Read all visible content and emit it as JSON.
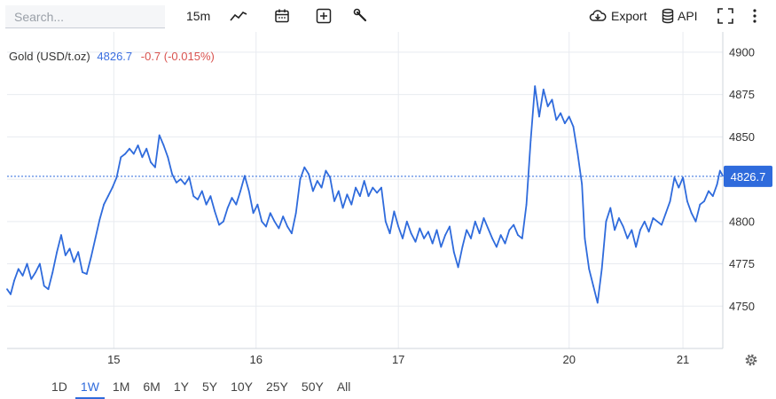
{
  "toolbar": {
    "search_placeholder": "Search...",
    "interval": "15m",
    "export_label": "Export",
    "api_label": "API"
  },
  "legend": {
    "name": "Gold (USD/t.oz)",
    "price": "4826.7",
    "change": "-0.7 (-0.015%)"
  },
  "periods": [
    "1D",
    "1W",
    "1M",
    "6M",
    "1Y",
    "5Y",
    "10Y",
    "25Y",
    "50Y",
    "All"
  ],
  "active_period": "1W",
  "colors": {
    "line": "#2f6bdc",
    "last_price_box": "#2f6bdc",
    "change": "#d9534f",
    "grid": "#e8ebf0"
  },
  "chart_data": {
    "type": "line",
    "series_name": "Gold (USD/t.oz)",
    "x_ticks": [
      {
        "label": "15",
        "x": 7.5
      },
      {
        "label": "16",
        "x": 17.5
      },
      {
        "label": "17",
        "x": 27.5
      },
      {
        "label": "20",
        "x": 39.5
      },
      {
        "label": "21",
        "x": 47.5
      }
    ],
    "x_range": [
      0,
      50.3
    ],
    "y_ticks": [
      4750,
      4775,
      4800,
      4825,
      4850,
      4875,
      4900
    ],
    "ylim": [
      4725,
      4912
    ],
    "last_price": 4826.7,
    "last_price_label": "4826.7",
    "grid": true,
    "points": [
      [
        0.0,
        4760
      ],
      [
        0.25,
        4757
      ],
      [
        0.5,
        4765
      ],
      [
        0.8,
        4772
      ],
      [
        1.1,
        4768
      ],
      [
        1.4,
        4775
      ],
      [
        1.7,
        4766
      ],
      [
        2.0,
        4770
      ],
      [
        2.3,
        4775
      ],
      [
        2.6,
        4762
      ],
      [
        2.9,
        4760
      ],
      [
        3.2,
        4770
      ],
      [
        3.5,
        4782
      ],
      [
        3.8,
        4792
      ],
      [
        4.1,
        4780
      ],
      [
        4.4,
        4784
      ],
      [
        4.7,
        4776
      ],
      [
        5.0,
        4782
      ],
      [
        5.3,
        4770
      ],
      [
        5.6,
        4769
      ],
      [
        5.9,
        4779
      ],
      [
        6.2,
        4790
      ],
      [
        6.5,
        4801
      ],
      [
        6.8,
        4810
      ],
      [
        7.1,
        4815
      ],
      [
        7.4,
        4820
      ],
      [
        7.7,
        4826
      ],
      [
        8.0,
        4838
      ],
      [
        8.3,
        4840
      ],
      [
        8.6,
        4843
      ],
      [
        8.9,
        4840
      ],
      [
        9.2,
        4845
      ],
      [
        9.5,
        4838
      ],
      [
        9.8,
        4843
      ],
      [
        10.1,
        4835
      ],
      [
        10.4,
        4832
      ],
      [
        10.7,
        4851
      ],
      [
        11.0,
        4845
      ],
      [
        11.3,
        4838
      ],
      [
        11.6,
        4828
      ],
      [
        11.9,
        4823
      ],
      [
        12.2,
        4825
      ],
      [
        12.5,
        4822
      ],
      [
        12.8,
        4826
      ],
      [
        13.1,
        4815
      ],
      [
        13.4,
        4813
      ],
      [
        13.7,
        4818
      ],
      [
        14.0,
        4810
      ],
      [
        14.3,
        4815
      ],
      [
        14.6,
        4806
      ],
      [
        14.9,
        4798
      ],
      [
        15.2,
        4800
      ],
      [
        15.5,
        4808
      ],
      [
        15.8,
        4814
      ],
      [
        16.1,
        4810
      ],
      [
        16.4,
        4818
      ],
      [
        16.7,
        4827
      ],
      [
        17.0,
        4818
      ],
      [
        17.3,
        4805
      ],
      [
        17.6,
        4810
      ],
      [
        17.9,
        4800
      ],
      [
        18.2,
        4797
      ],
      [
        18.5,
        4805
      ],
      [
        18.8,
        4800
      ],
      [
        19.1,
        4796
      ],
      [
        19.4,
        4803
      ],
      [
        19.7,
        4797
      ],
      [
        20.0,
        4793
      ],
      [
        20.3,
        4805
      ],
      [
        20.6,
        4825
      ],
      [
        20.9,
        4832
      ],
      [
        21.2,
        4828
      ],
      [
        21.5,
        4818
      ],
      [
        21.8,
        4824
      ],
      [
        22.1,
        4820
      ],
      [
        22.4,
        4830
      ],
      [
        22.7,
        4826
      ],
      [
        23.0,
        4812
      ],
      [
        23.3,
        4818
      ],
      [
        23.6,
        4808
      ],
      [
        23.9,
        4816
      ],
      [
        24.2,
        4810
      ],
      [
        24.5,
        4820
      ],
      [
        24.8,
        4815
      ],
      [
        25.1,
        4824
      ],
      [
        25.4,
        4815
      ],
      [
        25.7,
        4820
      ],
      [
        26.0,
        4817
      ],
      [
        26.3,
        4820
      ],
      [
        26.6,
        4800
      ],
      [
        26.9,
        4793
      ],
      [
        27.2,
        4806
      ],
      [
        27.5,
        4797
      ],
      [
        27.8,
        4790
      ],
      [
        28.1,
        4800
      ],
      [
        28.4,
        4793
      ],
      [
        28.7,
        4788
      ],
      [
        29.0,
        4796
      ],
      [
        29.3,
        4790
      ],
      [
        29.6,
        4794
      ],
      [
        29.9,
        4787
      ],
      [
        30.2,
        4795
      ],
      [
        30.5,
        4785
      ],
      [
        30.8,
        4792
      ],
      [
        31.1,
        4797
      ],
      [
        31.4,
        4782
      ],
      [
        31.7,
        4773
      ],
      [
        32.0,
        4785
      ],
      [
        32.3,
        4795
      ],
      [
        32.6,
        4790
      ],
      [
        32.9,
        4800
      ],
      [
        33.2,
        4793
      ],
      [
        33.5,
        4802
      ],
      [
        33.8,
        4796
      ],
      [
        34.1,
        4790
      ],
      [
        34.4,
        4785
      ],
      [
        34.7,
        4792
      ],
      [
        35.0,
        4787
      ],
      [
        35.3,
        4795
      ],
      [
        35.6,
        4798
      ],
      [
        35.9,
        4792
      ],
      [
        36.2,
        4790
      ],
      [
        36.5,
        4810
      ],
      [
        36.8,
        4848
      ],
      [
        37.1,
        4880
      ],
      [
        37.4,
        4862
      ],
      [
        37.7,
        4878
      ],
      [
        38.0,
        4868
      ],
      [
        38.3,
        4872
      ],
      [
        38.6,
        4860
      ],
      [
        38.9,
        4864
      ],
      [
        39.2,
        4858
      ],
      [
        39.5,
        4862
      ],
      [
        39.8,
        4856
      ],
      [
        40.1,
        4840
      ],
      [
        40.4,
        4822
      ],
      [
        40.6,
        4790
      ],
      [
        40.9,
        4772
      ],
      [
        41.2,
        4762
      ],
      [
        41.5,
        4752
      ],
      [
        41.8,
        4772
      ],
      [
        42.1,
        4800
      ],
      [
        42.4,
        4808
      ],
      [
        42.7,
        4795
      ],
      [
        43.0,
        4802
      ],
      [
        43.3,
        4797
      ],
      [
        43.6,
        4790
      ],
      [
        43.9,
        4795
      ],
      [
        44.2,
        4785
      ],
      [
        44.5,
        4795
      ],
      [
        44.8,
        4800
      ],
      [
        45.1,
        4794
      ],
      [
        45.4,
        4802
      ],
      [
        45.7,
        4800
      ],
      [
        46.0,
        4798
      ],
      [
        46.3,
        4805
      ],
      [
        46.6,
        4812
      ],
      [
        46.9,
        4826
      ],
      [
        47.2,
        4820
      ],
      [
        47.5,
        4826
      ],
      [
        47.8,
        4812
      ],
      [
        48.1,
        4805
      ],
      [
        48.4,
        4800
      ],
      [
        48.7,
        4810
      ],
      [
        49.0,
        4812
      ],
      [
        49.3,
        4818
      ],
      [
        49.6,
        4815
      ],
      [
        49.9,
        4822
      ],
      [
        50.1,
        4830
      ],
      [
        50.3,
        4827
      ]
    ]
  }
}
